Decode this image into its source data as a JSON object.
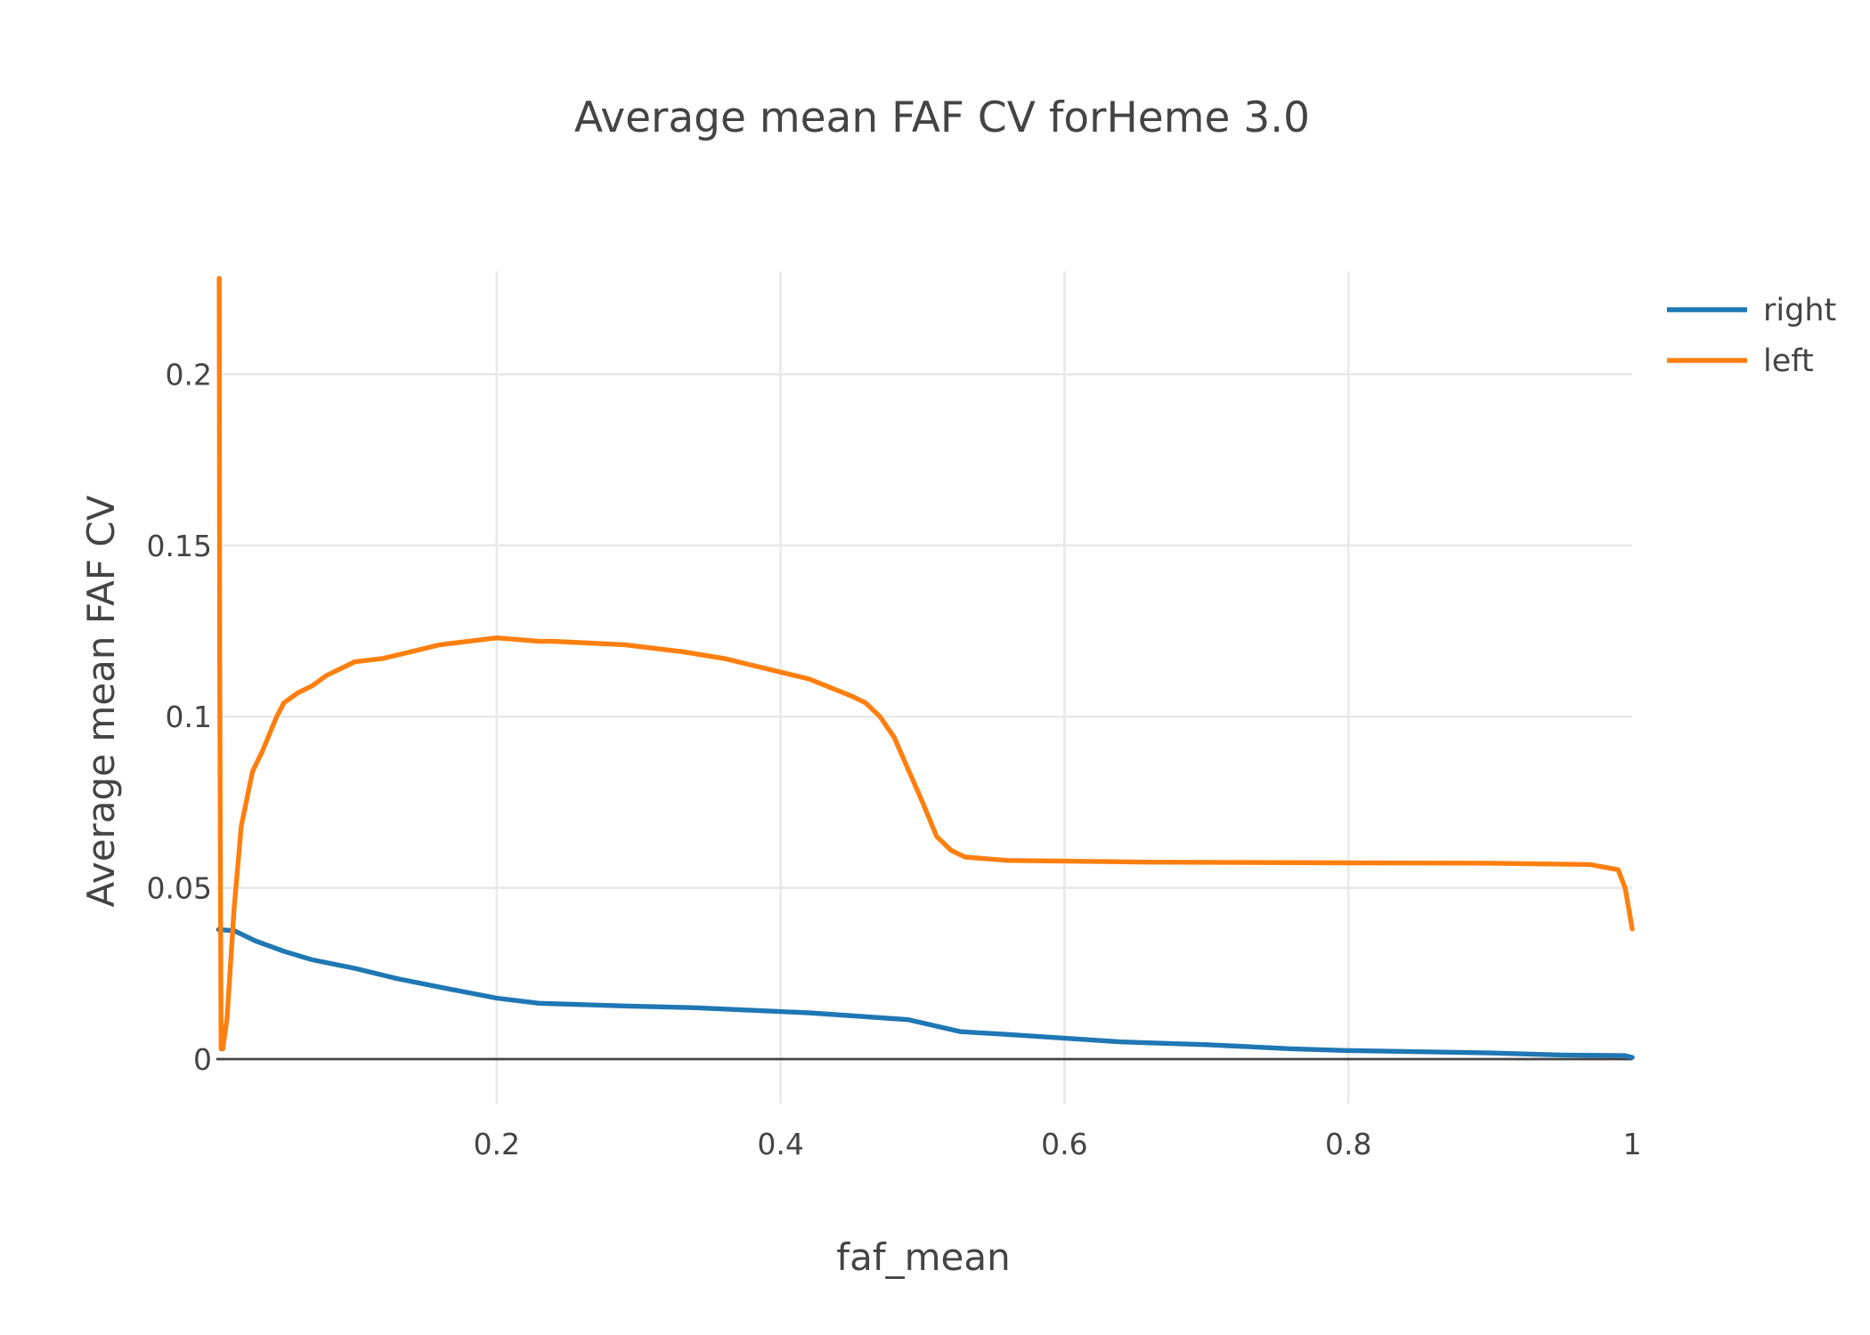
{
  "chart_data": {
    "type": "line",
    "title": "Average mean FAF CV forHeme 3.0",
    "xlabel": "faf_mean",
    "ylabel": "Average mean FAF CV",
    "xlim": [
      0.0025,
      1.0
    ],
    "ylim": [
      -0.013,
      0.23
    ],
    "x_ticks": [
      0.2,
      0.4,
      0.6,
      0.8,
      1
    ],
    "x_tick_labels": [
      "0.2",
      "0.4",
      "0.6",
      "0.8",
      "1"
    ],
    "y_ticks": [
      0,
      0.05,
      0.1,
      0.15,
      0.2
    ],
    "y_tick_labels": [
      "0",
      "0.05",
      "0.1",
      "0.15",
      "0.2"
    ],
    "grid": true,
    "legend_position": "top-right",
    "series": [
      {
        "name": "right",
        "color": "#1f77b4",
        "x": [
          0.004,
          0.015,
          0.03,
          0.05,
          0.07,
          0.1,
          0.13,
          0.16,
          0.2,
          0.23,
          0.29,
          0.34,
          0.42,
          0.49,
          0.527,
          0.56,
          0.64,
          0.7,
          0.76,
          0.8,
          0.9,
          0.95,
          0.995,
          1.0
        ],
        "values": [
          0.0378,
          0.0375,
          0.0345,
          0.0315,
          0.029,
          0.0265,
          0.0235,
          0.021,
          0.0178,
          0.0163,
          0.0155,
          0.015,
          0.0135,
          0.0115,
          0.008,
          0.0072,
          0.005,
          0.0042,
          0.003,
          0.0025,
          0.0018,
          0.0012,
          0.001,
          0.0005
        ]
      },
      {
        "name": "left",
        "color": "#ff7f0e",
        "x": [
          0.0045,
          0.0048,
          0.0052,
          0.0058,
          0.007,
          0.01,
          0.015,
          0.02,
          0.028,
          0.035,
          0.04,
          0.045,
          0.05,
          0.06,
          0.07,
          0.08,
          0.09,
          0.1,
          0.12,
          0.14,
          0.16,
          0.18,
          0.2,
          0.23,
          0.24,
          0.29,
          0.33,
          0.36,
          0.38,
          0.42,
          0.45,
          0.46,
          0.47,
          0.48,
          0.5,
          0.51,
          0.52,
          0.53,
          0.56,
          0.66,
          0.8,
          0.9,
          0.97,
          0.99,
          0.995,
          1.0
        ],
        "values": [
          0.228,
          0.12,
          0.07,
          0.003,
          0.003,
          0.012,
          0.044,
          0.068,
          0.084,
          0.09,
          0.095,
          0.1,
          0.104,
          0.107,
          0.109,
          0.112,
          0.114,
          0.116,
          0.117,
          0.119,
          0.121,
          0.122,
          0.123,
          0.122,
          0.122,
          0.121,
          0.119,
          0.117,
          0.115,
          0.111,
          0.106,
          0.104,
          0.1,
          0.094,
          0.075,
          0.065,
          0.061,
          0.059,
          0.058,
          0.0575,
          0.0573,
          0.0572,
          0.0568,
          0.0553,
          0.05,
          0.038
        ]
      }
    ]
  }
}
